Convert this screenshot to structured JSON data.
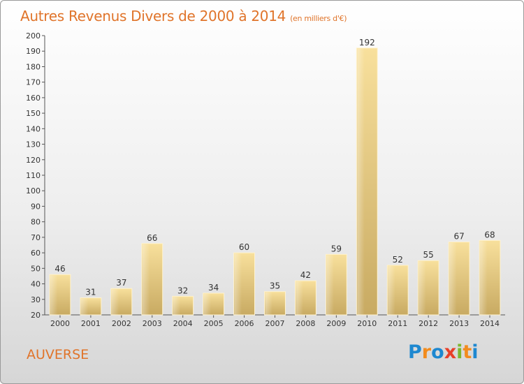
{
  "header": {
    "title": "Autres Revenus Divers de 2000 à 2014",
    "unit": "(en milliers d'€)"
  },
  "footer": {
    "commune": "AUVERSE",
    "logo": {
      "text": "Proxiti",
      "letters": [
        {
          "char": "P",
          "color": "#1e88d0"
        },
        {
          "char": "r",
          "color": "#f28c1e"
        },
        {
          "char": "o",
          "color": "#1e88d0"
        },
        {
          "char": "x",
          "color": "#e8402a"
        },
        {
          "char": "i",
          "color": "#7cb82f"
        },
        {
          "char": "t",
          "color": "#f28c1e"
        },
        {
          "char": "i",
          "color": "#1e88d0"
        }
      ]
    }
  },
  "chart_data": {
    "type": "bar",
    "title": "Autres Revenus Divers de 2000 à 2014",
    "subtitle": "(en milliers d'€)",
    "categories": [
      "2000",
      "2001",
      "2002",
      "2003",
      "2004",
      "2005",
      "2006",
      "2007",
      "2008",
      "2009",
      "2010",
      "2011",
      "2012",
      "2013",
      "2014"
    ],
    "values": [
      46,
      31,
      37,
      66,
      32,
      34,
      60,
      35,
      42,
      59,
      192,
      52,
      55,
      67,
      68
    ],
    "ylim": [
      20,
      200
    ],
    "yticks": [
      20,
      30,
      40,
      50,
      60,
      70,
      80,
      90,
      100,
      110,
      120,
      130,
      140,
      150,
      160,
      170,
      180,
      190,
      200
    ],
    "grid": false,
    "bar_color_light": "#f7dc96",
    "bar_color_dark": "#c9ab64"
  }
}
